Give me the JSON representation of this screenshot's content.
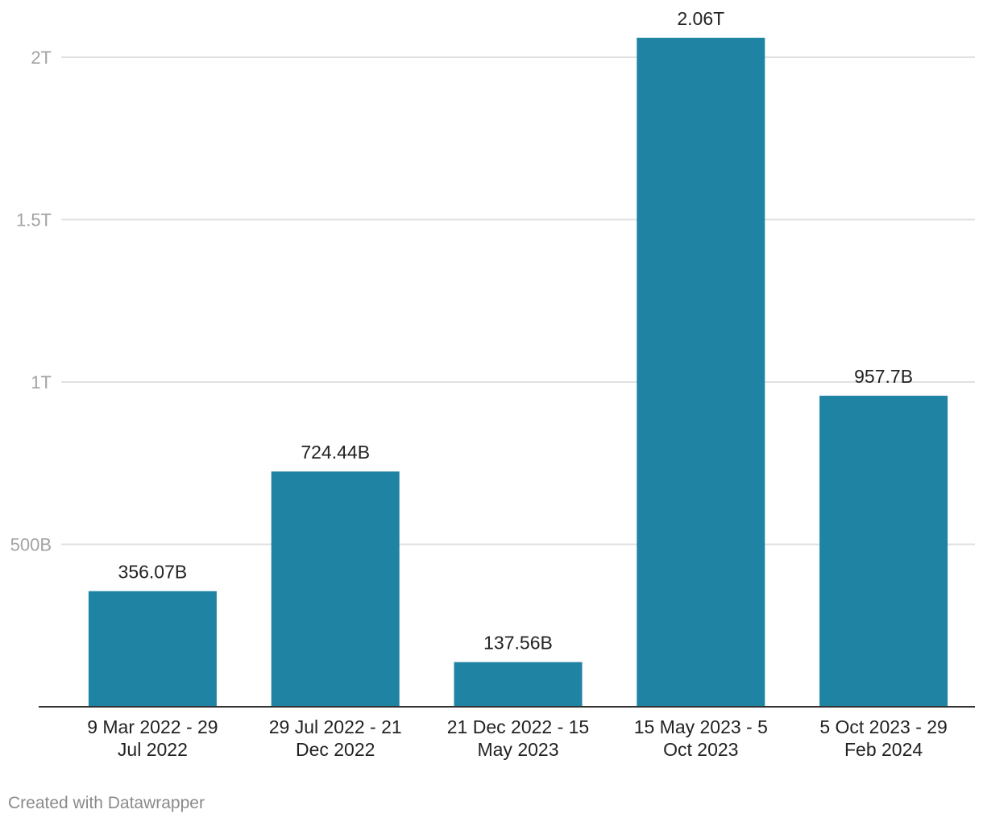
{
  "chart_data": {
    "type": "bar",
    "categories": [
      [
        "9 Mar 2022 - 29",
        "Jul 2022"
      ],
      [
        "29 Jul 2022 - 21",
        "Dec 2022"
      ],
      [
        "21 Dec 2022 - 15",
        "May 2023"
      ],
      [
        "15 May 2023 - 5",
        "Oct 2023"
      ],
      [
        "5 Oct 2023 - 29",
        "Feb 2024"
      ]
    ],
    "values": [
      356070000000,
      724440000000,
      137560000000,
      2060000000000,
      957700000000
    ],
    "data_labels": [
      "356.07B",
      "724.44B",
      "137.56B",
      "2.06T",
      "957.7B"
    ],
    "y_ticks": [
      {
        "value": 500000000000,
        "label": "500B"
      },
      {
        "value": 1000000000000,
        "label": "1T"
      },
      {
        "value": 1500000000000,
        "label": "1.5T"
      },
      {
        "value": 2000000000000,
        "label": "2T"
      }
    ],
    "ylim": [
      0,
      2060000000000
    ],
    "grid": true,
    "bar_color": "#1f83a3",
    "grid_color": "#e1e1e1",
    "axis_color": "#333333",
    "tick_label_color": "#a3a3a3",
    "label_color": "#222222"
  },
  "footer": {
    "credit": "Created with Datawrapper"
  }
}
